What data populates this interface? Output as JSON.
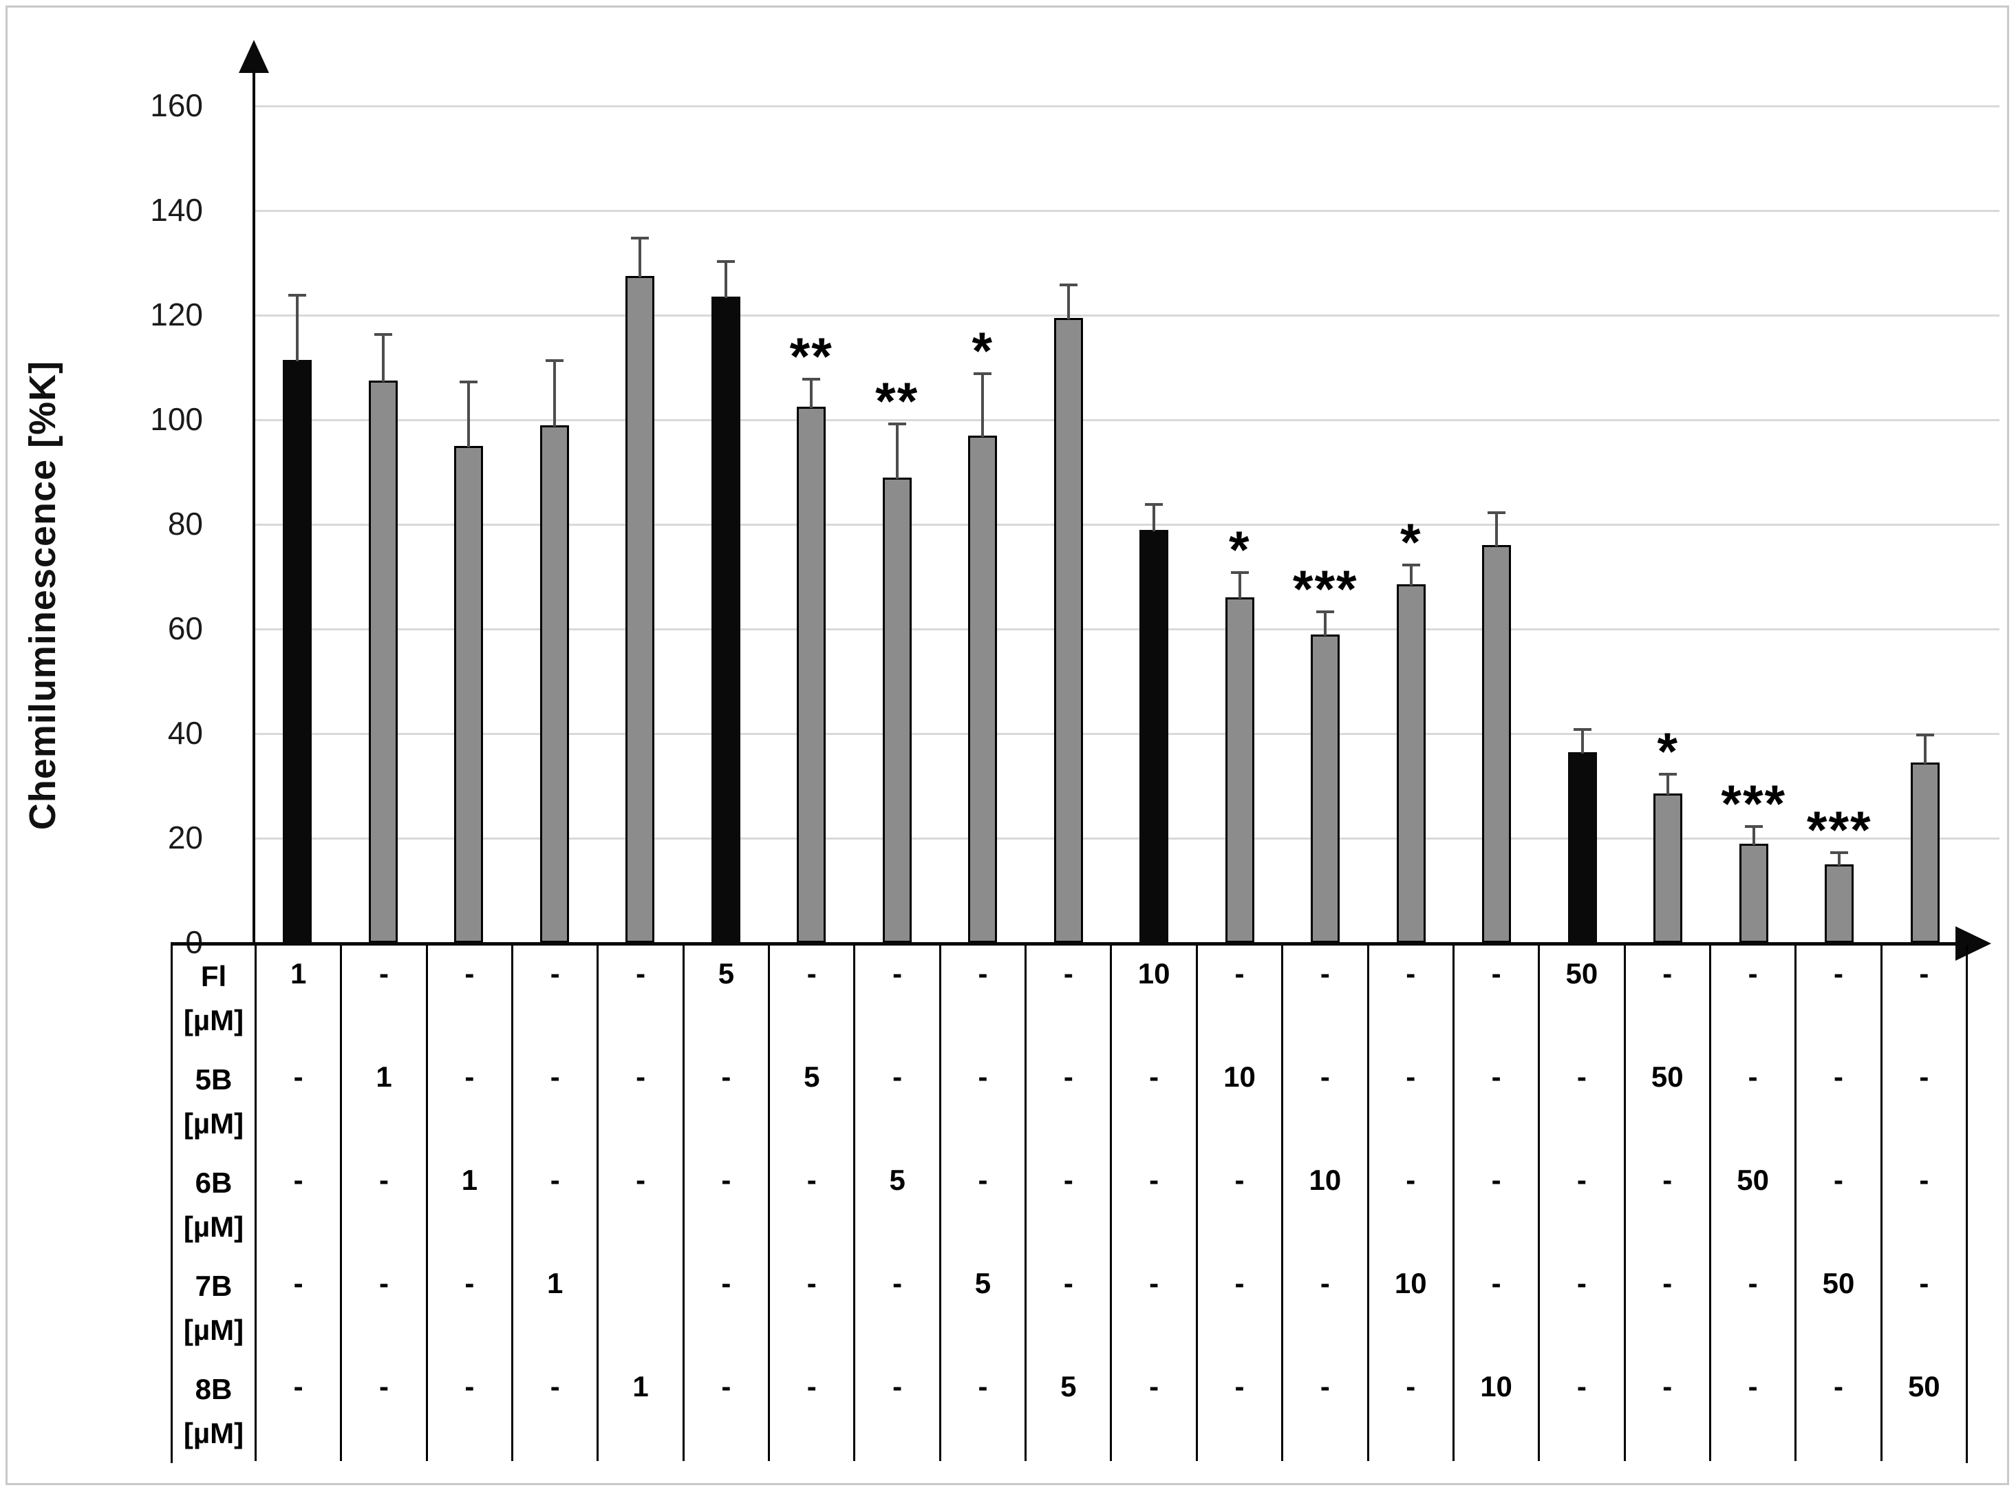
{
  "chart_data": {
    "type": "bar",
    "title": "",
    "ylabel": "Chemiluminescence [%K]",
    "xlabel": "",
    "ylim": [
      0,
      160
    ],
    "yticks": [
      0,
      20,
      40,
      60,
      80,
      100,
      120,
      140,
      160
    ],
    "grid": true,
    "legend_position": "none",
    "colors": {
      "control_bar": "#0a0a0a",
      "treatment_bar": "#8c8c8c",
      "gridline": "#d9d9d9",
      "error_bar": "#4d4d4d"
    },
    "bars": [
      {
        "group": "Fl",
        "conc": "1",
        "value": 111.5,
        "error_top": 123.5,
        "color": "black",
        "significance": ""
      },
      {
        "group": "5B",
        "conc": "1",
        "value": 107.5,
        "error_top": 116,
        "color": "gray",
        "significance": ""
      },
      {
        "group": "6B",
        "conc": "1",
        "value": 95,
        "error_top": 107,
        "color": "gray",
        "significance": ""
      },
      {
        "group": "7B",
        "conc": "1",
        "value": 99,
        "error_top": 111,
        "color": "gray",
        "significance": ""
      },
      {
        "group": "8B",
        "conc": "1",
        "value": 127.5,
        "error_top": 134.5,
        "color": "gray",
        "significance": ""
      },
      {
        "group": "Fl",
        "conc": "5",
        "value": 123.5,
        "error_top": 130,
        "color": "black",
        "significance": ""
      },
      {
        "group": "5B",
        "conc": "5",
        "value": 102.5,
        "error_top": 107.5,
        "color": "gray",
        "significance": "**"
      },
      {
        "group": "6B",
        "conc": "5",
        "value": 89,
        "error_top": 99,
        "color": "gray",
        "significance": "**"
      },
      {
        "group": "7B",
        "conc": "5",
        "value": 97,
        "error_top": 108.5,
        "color": "gray",
        "significance": "*"
      },
      {
        "group": "8B",
        "conc": "5",
        "value": 119.5,
        "error_top": 125.5,
        "color": "gray",
        "significance": ""
      },
      {
        "group": "Fl",
        "conc": "10",
        "value": 79,
        "error_top": 83.5,
        "color": "black",
        "significance": ""
      },
      {
        "group": "5B",
        "conc": "10",
        "value": 66,
        "error_top": 70.5,
        "color": "gray",
        "significance": "*"
      },
      {
        "group": "6B",
        "conc": "10",
        "value": 59,
        "error_top": 63,
        "color": "gray",
        "significance": "***"
      },
      {
        "group": "7B",
        "conc": "10",
        "value": 68.5,
        "error_top": 72,
        "color": "gray",
        "significance": "*"
      },
      {
        "group": "8B",
        "conc": "10",
        "value": 76,
        "error_top": 82,
        "color": "gray",
        "significance": ""
      },
      {
        "group": "Fl",
        "conc": "50",
        "value": 36.5,
        "error_top": 40.5,
        "color": "black",
        "significance": ""
      },
      {
        "group": "5B",
        "conc": "50",
        "value": 28.5,
        "error_top": 32,
        "color": "gray",
        "significance": "*"
      },
      {
        "group": "6B",
        "conc": "50",
        "value": 19,
        "error_top": 22,
        "color": "gray",
        "significance": "***"
      },
      {
        "group": "7B",
        "conc": "50",
        "value": 15,
        "error_top": 17,
        "color": "gray",
        "significance": "***"
      },
      {
        "group": "8B",
        "conc": "50",
        "value": 34.5,
        "error_top": 39.5,
        "color": "gray",
        "significance": ""
      }
    ],
    "table": {
      "row_headers": [
        {
          "name": "Fl",
          "unit": "[µM]"
        },
        {
          "name": "5B",
          "unit": "[µM]"
        },
        {
          "name": "6B",
          "unit": "[µM]"
        },
        {
          "name": "7B",
          "unit": "[µM]"
        },
        {
          "name": "8B",
          "unit": "[µM]"
        }
      ],
      "rows": [
        [
          "1",
          "-",
          "-",
          "-",
          "-",
          "5",
          "-",
          "-",
          "-",
          "-",
          "10",
          "-",
          "-",
          "-",
          "-",
          "50",
          "-",
          "-",
          "-",
          "-"
        ],
        [
          "-",
          "1",
          "-",
          "-",
          "-",
          "-",
          "5",
          "-",
          "-",
          "-",
          "-",
          "10",
          "-",
          "-",
          "-",
          "-",
          "50",
          "-",
          "-",
          "-"
        ],
        [
          "-",
          "-",
          "1",
          "-",
          "-",
          "-",
          "-",
          "5",
          "-",
          "-",
          "-",
          "-",
          "10",
          "-",
          "-",
          "-",
          "-",
          "50",
          "-",
          "-"
        ],
        [
          "-",
          "-",
          "-",
          "1",
          "",
          "-",
          "-",
          "-",
          "5",
          "-",
          "-",
          "-",
          "-",
          "10",
          "-",
          "-",
          "-",
          "-",
          "50",
          "-"
        ],
        [
          "-",
          "-",
          "-",
          "-",
          "1",
          "-",
          "-",
          "-",
          "-",
          "5",
          "-",
          "-",
          "-",
          "-",
          "10",
          "-",
          "-",
          "-",
          "-",
          "50"
        ]
      ]
    }
  }
}
